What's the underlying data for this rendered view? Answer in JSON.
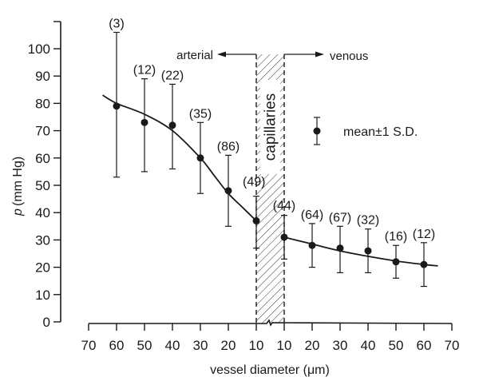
{
  "chart_data": {
    "type": "scatter",
    "title": "",
    "xlabel": "vessel diameter (μm)",
    "ylabel_symbol": "p",
    "ylabel": "(mm Hg)",
    "ylim": [
      0,
      100
    ],
    "yticks": [
      0,
      10,
      20,
      30,
      40,
      50,
      60,
      70,
      80,
      90,
      100
    ],
    "xticks_arterial": [
      70,
      60,
      50,
      40,
      30,
      20,
      10
    ],
    "xticks_venous": [
      10,
      20,
      30,
      40,
      50,
      60,
      70
    ],
    "grid": false,
    "legend": {
      "label": "mean±1 S.D.",
      "position": "right-middle"
    },
    "annotations": {
      "arterial": "arterial",
      "venous": "venous",
      "capillaries": "capillaries"
    },
    "series": [
      {
        "name": "arterial",
        "points": [
          {
            "diameter": 60,
            "mean": 79,
            "sd_low": 53,
            "sd_high": 106,
            "n": "(3)"
          },
          {
            "diameter": 50,
            "mean": 73,
            "sd_low": 55,
            "sd_high": 89,
            "n": "(12)"
          },
          {
            "diameter": 40,
            "mean": 72,
            "sd_low": 56,
            "sd_high": 87,
            "n": "(22)"
          },
          {
            "diameter": 30,
            "mean": 60,
            "sd_low": 47,
            "sd_high": 73,
            "n": "(35)"
          },
          {
            "diameter": 20,
            "mean": 48,
            "sd_low": 35,
            "sd_high": 61,
            "n": "(86)"
          },
          {
            "diameter": 10,
            "mean": 37,
            "sd_low": 27,
            "sd_high": 46,
            "n": "(49)"
          }
        ],
        "curve": [
          [
            65,
            83
          ],
          [
            60,
            80
          ],
          [
            50,
            76
          ],
          [
            40,
            70
          ],
          [
            30,
            60
          ],
          [
            25,
            53.5
          ],
          [
            20,
            47
          ],
          [
            15,
            42
          ],
          [
            10,
            37
          ]
        ]
      },
      {
        "name": "venous",
        "points": [
          {
            "diameter": 10,
            "mean": 31,
            "sd_low": 23,
            "sd_high": 39,
            "n": "(44)"
          },
          {
            "diameter": 20,
            "mean": 28,
            "sd_low": 20,
            "sd_high": 36,
            "n": "(64)"
          },
          {
            "diameter": 30,
            "mean": 27,
            "sd_low": 18,
            "sd_high": 35,
            "n": "(67)"
          },
          {
            "diameter": 40,
            "mean": 26,
            "sd_low": 18,
            "sd_high": 34,
            "n": "(32)"
          },
          {
            "diameter": 50,
            "mean": 22,
            "sd_low": 16,
            "sd_high": 28,
            "n": "(16)"
          },
          {
            "diameter": 60,
            "mean": 21,
            "sd_low": 13,
            "sd_high": 29,
            "n": "(12)"
          }
        ],
        "curve": [
          [
            10,
            31
          ],
          [
            20,
            28.5
          ],
          [
            30,
            26
          ],
          [
            40,
            24
          ],
          [
            50,
            22.3
          ],
          [
            60,
            21
          ],
          [
            65,
            20.5
          ]
        ]
      }
    ]
  }
}
